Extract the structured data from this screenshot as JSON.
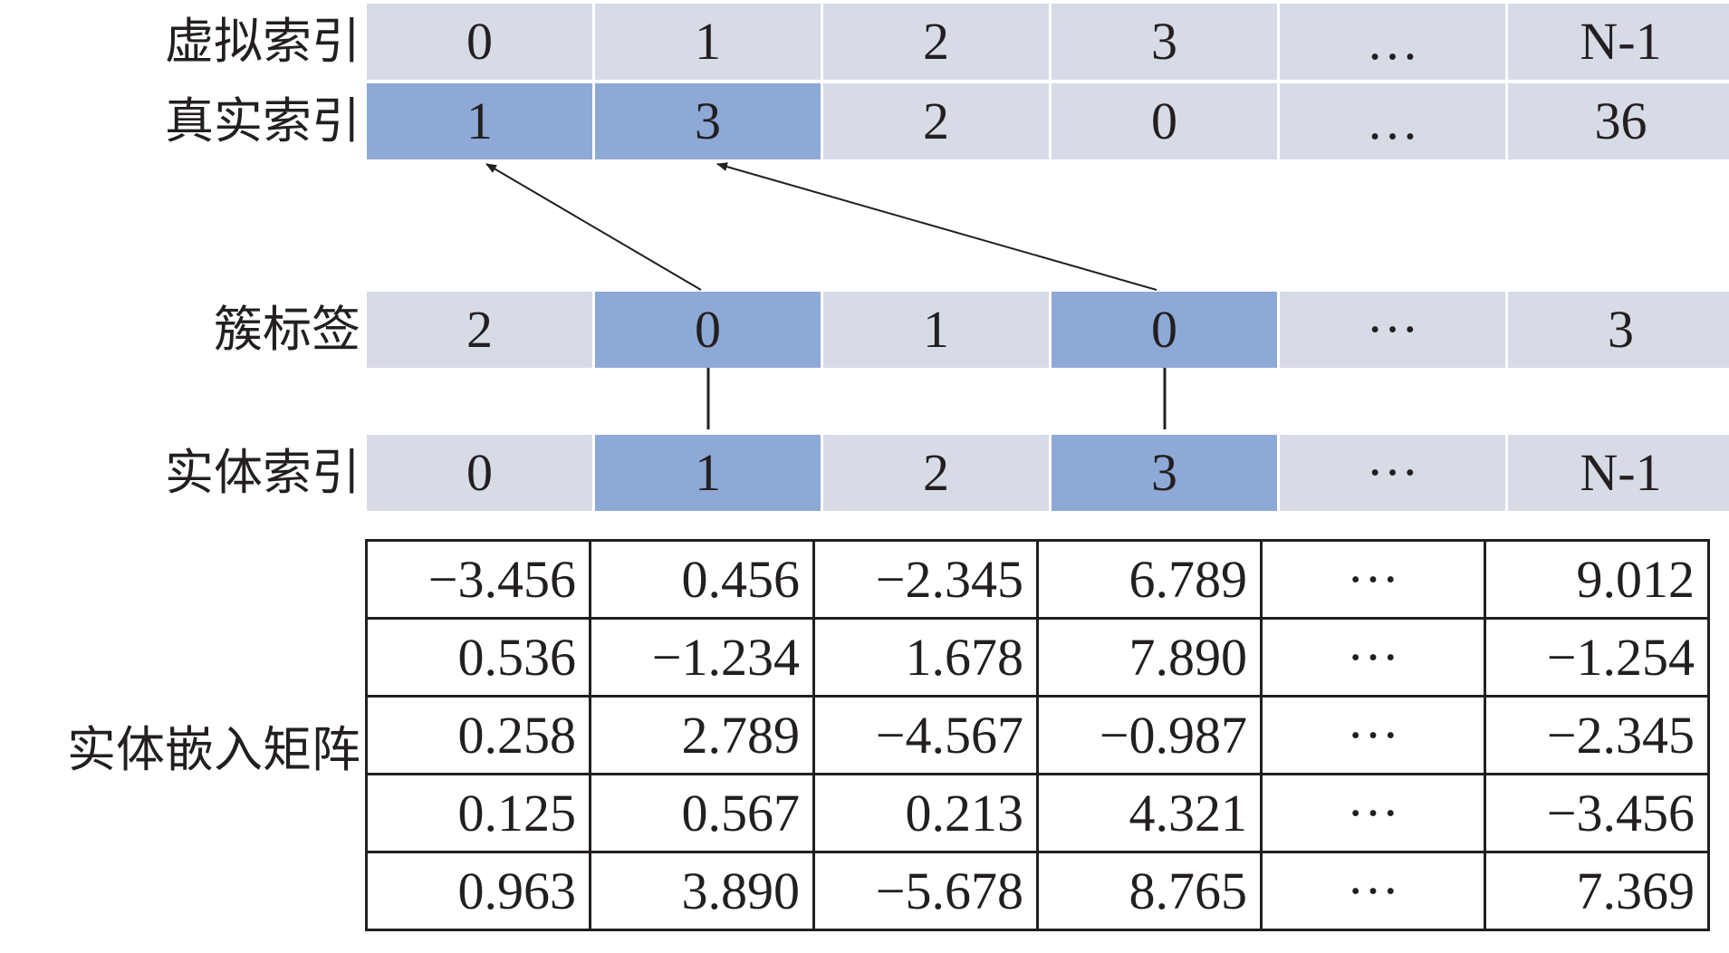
{
  "rows": {
    "virtual_index": {
      "label": "虚拟索引",
      "cells": [
        {
          "text": "0",
          "hl": false
        },
        {
          "text": "1",
          "hl": false
        },
        {
          "text": "2",
          "hl": false
        },
        {
          "text": "3",
          "hl": false
        },
        {
          "text": "…",
          "hl": false
        },
        {
          "text": "N-1",
          "hl": false
        }
      ]
    },
    "real_index": {
      "label": "真实索引",
      "cells": [
        {
          "text": "1",
          "hl": true
        },
        {
          "text": "3",
          "hl": true
        },
        {
          "text": "2",
          "hl": false
        },
        {
          "text": "0",
          "hl": false
        },
        {
          "text": "…",
          "hl": false
        },
        {
          "text": "36",
          "hl": false
        }
      ]
    },
    "cluster_label": {
      "label": "簇标签",
      "cells": [
        {
          "text": "2",
          "hl": false
        },
        {
          "text": "0",
          "hl": true
        },
        {
          "text": "1",
          "hl": false
        },
        {
          "text": "0",
          "hl": true
        },
        {
          "text": "···",
          "hl": false
        },
        {
          "text": "3",
          "hl": false
        }
      ]
    },
    "entity_index": {
      "label": "实体索引",
      "cells": [
        {
          "text": "0",
          "hl": false
        },
        {
          "text": "1",
          "hl": true
        },
        {
          "text": "2",
          "hl": false
        },
        {
          "text": "3",
          "hl": true
        },
        {
          "text": "···",
          "hl": false
        },
        {
          "text": "N-1",
          "hl": false
        }
      ]
    }
  },
  "matrix": {
    "label": "实体嵌入矩阵",
    "rows": [
      [
        "−3.456",
        "0.456",
        "−2.345",
        "6.789",
        "···",
        "9.012"
      ],
      [
        "0.536",
        "−1.234",
        "1.678",
        "7.890",
        "···",
        "−1.254"
      ],
      [
        "0.258",
        "2.789",
        "−4.567",
        "−0.987",
        "···",
        "−2.345"
      ],
      [
        "0.125",
        "0.567",
        "0.213",
        "4.321",
        "···",
        "−3.456"
      ],
      [
        "0.963",
        "3.890",
        "−5.678",
        "8.765",
        "···",
        "7.369"
      ]
    ]
  },
  "colors": {
    "cell_bg": "#d6dbe6",
    "cell_highlight": "#8ea9d6",
    "text": "#231f20"
  }
}
